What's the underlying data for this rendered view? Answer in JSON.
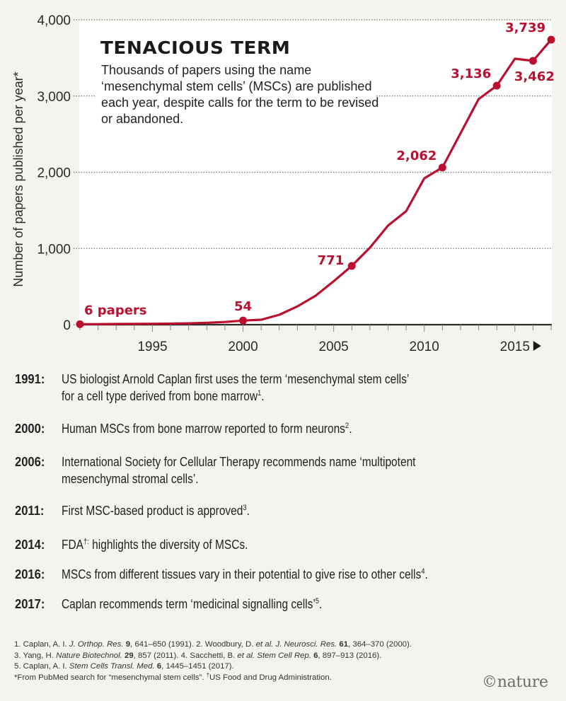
{
  "chart_data": {
    "type": "line",
    "title": "TENACIOUS TERM",
    "subtitle": "Thousands of papers using the name ‘mesenchymal stem cells’ (MSCs) are published each year, despite calls for the term to be revised or abandoned.",
    "xlabel": "",
    "ylabel": "Number of papers published per year*",
    "xlim": [
      1991,
      2017
    ],
    "ylim": [
      0,
      4000
    ],
    "x_ticks": [
      1995,
      2000,
      2005,
      2010,
      2015
    ],
    "x_tick_labels": [
      "1995",
      "2000",
      "2005",
      "2010",
      "2015"
    ],
    "x_axis_arrow": "right-pointing triangle after 2015",
    "y_ticks": [
      0,
      1000,
      2000,
      3000,
      4000
    ],
    "y_tick_labels": [
      "0",
      "1,000",
      "2,000",
      "3,000",
      "4,000"
    ],
    "grid": "horizontal dotted",
    "color": "#b8102e",
    "x": [
      1991,
      1992,
      1993,
      1994,
      1995,
      1996,
      1997,
      1998,
      1999,
      2000,
      2001,
      2002,
      2003,
      2004,
      2005,
      2006,
      2007,
      2008,
      2009,
      2010,
      2011,
      2012,
      2013,
      2014,
      2015,
      2016,
      2017
    ],
    "series": [
      {
        "name": "MSC papers per year",
        "values": [
          6,
          7,
          9,
          10,
          12,
          14,
          18,
          25,
          35,
          54,
          65,
          130,
          240,
          380,
          570,
          771,
          1010,
          1300,
          1490,
          1920,
          2062,
          2510,
          2960,
          3136,
          3490,
          3462,
          3739
        ]
      }
    ],
    "annotations": [
      {
        "x": 1991,
        "y": 6,
        "label": "6 papers",
        "pos": "above-right"
      },
      {
        "x": 2000,
        "y": 54,
        "label": "54",
        "pos": "above"
      },
      {
        "x": 2006,
        "y": 771,
        "label": "771",
        "pos": "left"
      },
      {
        "x": 2011,
        "y": 2062,
        "label": "2,062",
        "pos": "above-left"
      },
      {
        "x": 2014,
        "y": 3136,
        "label": "3,136",
        "pos": "above-left"
      },
      {
        "x": 2016,
        "y": 3462,
        "label": "3,462",
        "pos": "below"
      },
      {
        "x": 2017,
        "y": 3739,
        "label": "3,739",
        "pos": "above-left"
      }
    ]
  },
  "timeline": [
    {
      "year": "1991:",
      "lines": [
        "US biologist Arnold Caplan first uses the term ‘mesenchymal stem cells’",
        "for a cell type derived from bone marrow"
      ],
      "ref": "1",
      "end": "."
    },
    {
      "year": "2000:",
      "lines": [
        "Human MSCs from bone marrow reported to form neurons"
      ],
      "ref": "2",
      "end": "."
    },
    {
      "year": "2006:",
      "lines": [
        "International Society for Cellular Therapy recommends name ‘multipotent",
        "mesenchymal stromal cells’."
      ],
      "ref": "",
      "end": ""
    },
    {
      "year": "2011:",
      "lines": [
        "First MSC-based product is approved"
      ],
      "ref": "3",
      "end": "."
    },
    {
      "year": "2014:",
      "lines": [
        "FDA",
        " highlights the diversity of MSCs."
      ],
      "ref": "†:",
      "end": ""
    },
    {
      "year": "2016:",
      "lines": [
        "MSCs from different tissues vary in their potential to give rise to other cells"
      ],
      "ref": "4",
      "end": "."
    },
    {
      "year": "2017:",
      "lines": [
        "Caplan recommends term ‘medicinal signalling cells’"
      ],
      "ref": "5",
      "end": "."
    }
  ],
  "footnotes": {
    "refs": [
      {
        "num": "1.",
        "author": "Caplan, A. I.",
        "journal": "J. Orthop. Res.",
        "vol": "9",
        "rest": ", 641–650 (1991)."
      },
      {
        "num": "2.",
        "author": "Woodbury, D.",
        "etal": "et al.",
        "journal": "J. Neurosci. Res.",
        "vol": "61",
        "rest": ", 364–370 (2000)."
      },
      {
        "num": "3.",
        "author": "Yang, H.",
        "journal": "Nature Biotechnol.",
        "vol": "29",
        "rest": ", 857 (2011)."
      },
      {
        "num": "4.",
        "author": "Sacchetti, B.",
        "etal": "et al.",
        "journal": "Stem Cell Rep.",
        "vol": "6",
        "rest": ", 897–913 (2016)."
      },
      {
        "num": "5.",
        "author": "Caplan, A. I.",
        "journal": "Stem Cells Transl. Med.",
        "vol": "6",
        "rest": ", 1445–1451 (2017)."
      }
    ],
    "note_star": "*From PubMed search for “mesenchymal stem cells”.",
    "note_dagger_mark": "†",
    "note_dagger": "US Food and Drug Administration."
  },
  "logo": "©nature"
}
